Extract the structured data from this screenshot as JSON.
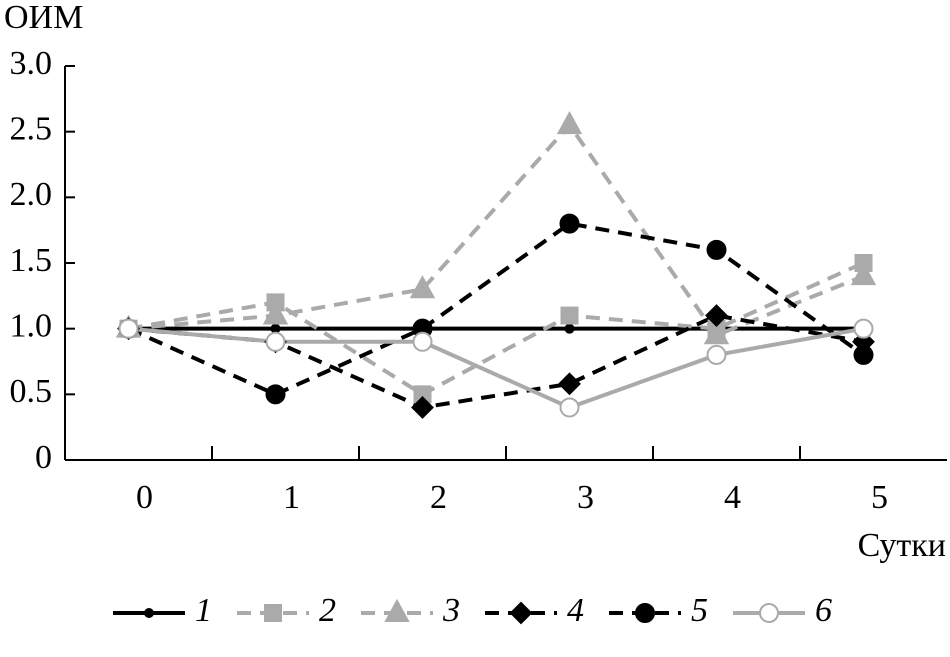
{
  "chart_data": {
    "type": "line",
    "y_label": "ОИМ",
    "x_label": "Сутки",
    "categories": [
      "0",
      "1",
      "2",
      "3",
      "4",
      "5"
    ],
    "ylim": [
      0,
      3
    ],
    "yticks": [
      0,
      0.5,
      {
        "value": 1,
        "label": "1.0"
      },
      1.5,
      {
        "value": 2,
        "label": "2.0"
      },
      2.5,
      {
        "value": 3,
        "label": "3.0"
      }
    ],
    "series": [
      {
        "name": "1",
        "color": "#000000",
        "dashed": false,
        "marker": "dot",
        "marker_fill": "#000000",
        "values": [
          1,
          1,
          1,
          1,
          1,
          1
        ]
      },
      {
        "name": "2",
        "color": "#aaaaaa",
        "dashed": true,
        "marker": "square",
        "marker_fill": "#aaaaaa",
        "values": [
          1,
          1.2,
          0.5,
          1.1,
          1.0,
          1.5
        ]
      },
      {
        "name": "3",
        "color": "#aaaaaa",
        "dashed": true,
        "marker": "triangle",
        "marker_fill": "#aaaaaa",
        "values": [
          1,
          1.1,
          1.3,
          2.55,
          0.95,
          1.4
        ]
      },
      {
        "name": "4",
        "color": "#000000",
        "dashed": true,
        "marker": "diamond",
        "marker_fill": "#000000",
        "values": [
          1,
          0.9,
          0.4,
          0.58,
          1.1,
          0.9
        ]
      },
      {
        "name": "5",
        "color": "#000000",
        "dashed": true,
        "marker": "circle",
        "marker_fill": "#000000",
        "values": [
          1,
          0.5,
          1.0,
          1.8,
          1.6,
          0.8
        ]
      },
      {
        "name": "6",
        "color": "#aaaaaa",
        "dashed": false,
        "marker": "circle",
        "marker_fill": "#ffffff",
        "values": [
          1,
          0.9,
          0.9,
          0.4,
          0.8,
          1.0
        ]
      }
    ]
  }
}
